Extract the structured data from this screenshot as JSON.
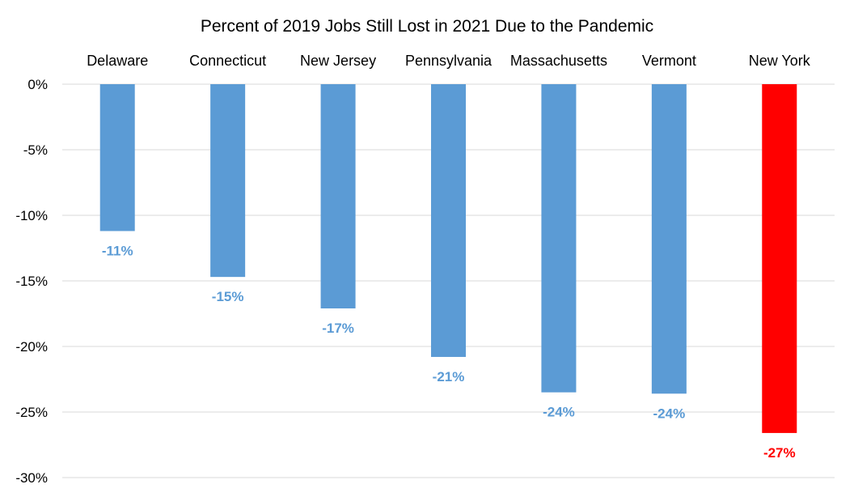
{
  "chart_data": {
    "type": "bar",
    "title": "Percent of 2019 Jobs Still Lost in 2021 Due to the Pandemic",
    "xlabel": "",
    "ylabel": "",
    "categories": [
      "Delaware",
      "Connecticut",
      "New Jersey",
      "Pennsylvania",
      "Massachusetts",
      "Vermont",
      "New York"
    ],
    "values": [
      -11.2,
      -14.7,
      -17.1,
      -20.8,
      -23.5,
      -23.6,
      -26.6
    ],
    "data_labels": [
      "-11%",
      "-15%",
      "-17%",
      "-21%",
      "-24%",
      "-24%",
      "-27%"
    ],
    "y_ticks": [
      0,
      -5,
      -10,
      -15,
      -20,
      -25,
      -30
    ],
    "y_tick_labels": [
      "0%",
      "-5%",
      "-10%",
      "-15%",
      "-20%",
      "-25%",
      "-30%"
    ],
    "ylim": [
      -30,
      0
    ],
    "grid": true,
    "legend": false,
    "category_axis_position": "top",
    "colors": {
      "default_bar": "#5b9bd5",
      "highlight_bar": "#ff0000",
      "default_label": "#5b9bd5",
      "highlight_label": "#ff0000"
    },
    "highlight_category": "New York"
  }
}
